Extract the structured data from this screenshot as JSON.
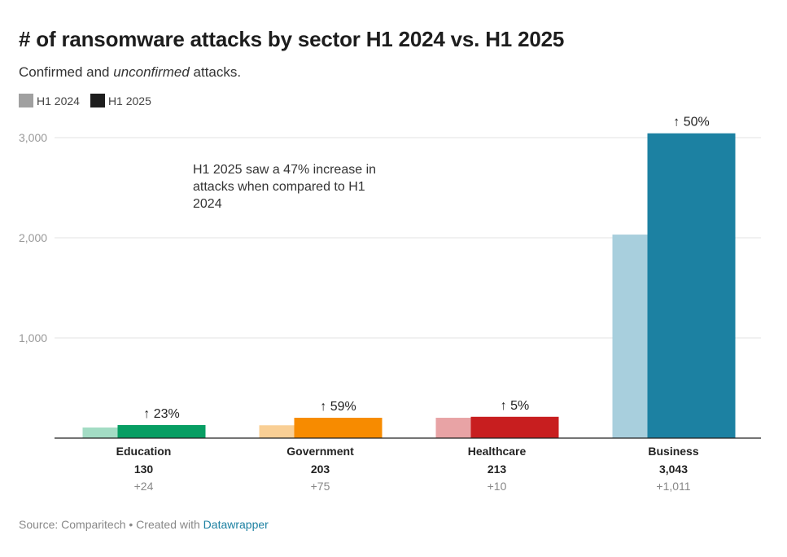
{
  "title": "# of ransomware attacks by sector H1 2024 vs. H1 2025",
  "subtitle_prefix": "Confirmed and ",
  "subtitle_em": "unconfirmed",
  "subtitle_suffix": " attacks.",
  "legend": [
    {
      "label": "H1 2024",
      "color": "#a0a0a0"
    },
    {
      "label": "H1 2025",
      "color": "#1d1d1d"
    }
  ],
  "annotation": "H1 2025 saw a 47% increase in attacks when compared to H1 2024",
  "footer": {
    "source": "Source: Comparitech • Created with ",
    "link": "Datawrapper"
  },
  "chart_data": {
    "type": "bar",
    "categories": [
      "Education",
      "Government",
      "Healthcare",
      "Business"
    ],
    "series": [
      {
        "name": "H1 2024",
        "values": [
          106,
          128,
          203,
          2032
        ]
      },
      {
        "name": "H1 2025",
        "values": [
          130,
          203,
          213,
          3043
        ]
      }
    ],
    "value_labels": [
      "130",
      "203",
      "213",
      "3,043"
    ],
    "change_labels": [
      "+24",
      "+75",
      "+10",
      "+1,011"
    ],
    "pct_labels": [
      "↑ 23%",
      "↑ 59%",
      "↑ 5%",
      "↑ 50%"
    ],
    "colors_2024": [
      "#a3dcc4",
      "#f9cf95",
      "#e8a3a5",
      "#a8cfdd"
    ],
    "colors_2025": [
      "#079e63",
      "#f78b00",
      "#c81e1f",
      "#1c81a2"
    ],
    "ylim": [
      0,
      3000
    ],
    "y_ticks": [
      1000,
      2000,
      3000
    ],
    "y_tick_labels": [
      "1,000",
      "2,000",
      "3,000"
    ],
    "grid": true
  }
}
